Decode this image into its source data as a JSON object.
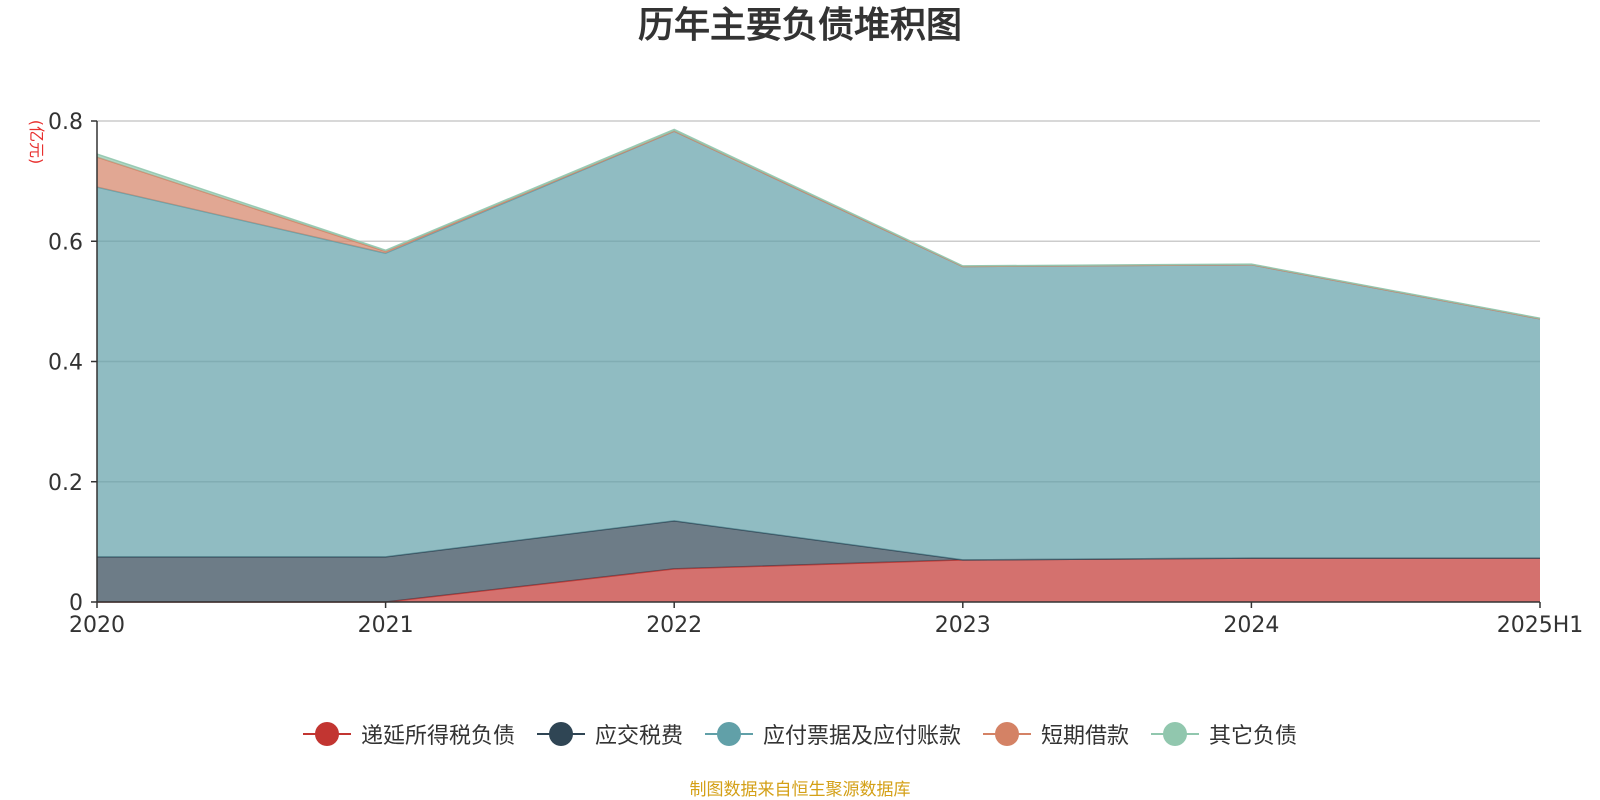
{
  "chart_data": {
    "type": "area",
    "stacked": true,
    "title": "历年主要负债堆积图",
    "unit_label": "(亿元)",
    "categories": [
      "2020",
      "2021",
      "2022",
      "2023",
      "2024",
      "2025H1"
    ],
    "ylim": [
      0,
      0.8
    ],
    "yticks": [
      0,
      0.2,
      0.4,
      0.6,
      0.8
    ],
    "ytick_labels": [
      "0",
      "0.2",
      "0.4",
      "0.6",
      "0.8"
    ],
    "grid": true,
    "legend_position": "bottom",
    "series": [
      {
        "name": "递延所得税负债",
        "color": "#c23531",
        "values": [
          0,
          0,
          0.055,
          0.07,
          0.073,
          0.073
        ]
      },
      {
        "name": "应交税费",
        "color": "#2f4554",
        "values": [
          0.075,
          0.075,
          0.08,
          0,
          0,
          0
        ]
      },
      {
        "name": "应付票据及应付账款",
        "color": "#61a0a8",
        "values": [
          0.615,
          0.505,
          0.648,
          0.488,
          0.488,
          0.398
        ]
      },
      {
        "name": "短期借款",
        "color": "#d48265",
        "values": [
          0.05,
          0.003,
          0,
          0,
          0,
          0
        ]
      },
      {
        "name": "其它负债",
        "color": "#91c7ae",
        "values": [
          0.005,
          0.002,
          0.003,
          0.001,
          0.001,
          0.001
        ]
      }
    ]
  },
  "source_note": "制图数据来自恒生聚源数据库"
}
